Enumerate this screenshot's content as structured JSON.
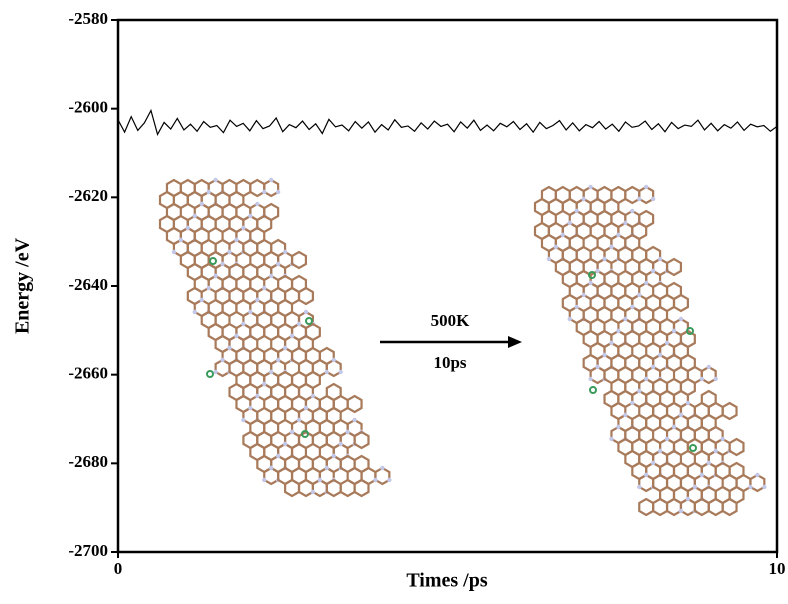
{
  "chart_data": {
    "type": "line",
    "ylabel": "Energy /eV",
    "xlabel": "Times /ps",
    "xlim": [
      0,
      10
    ],
    "xticks": [
      0,
      10
    ],
    "ylim": [
      -2700,
      -2580
    ],
    "yticks": [
      -2700,
      -2680,
      -2660,
      -2640,
      -2620,
      -2600,
      -2580
    ],
    "color": "#000000",
    "annotations": [
      "500K",
      "10ps"
    ],
    "x": [
      0,
      0.1,
      0.2,
      0.3,
      0.4,
      0.5,
      0.6,
      0.7,
      0.8,
      0.9,
      1,
      1.1,
      1.2,
      1.3,
      1.4,
      1.5,
      1.6,
      1.7,
      1.8,
      1.9,
      2,
      2.1,
      2.2,
      2.3,
      2.4,
      2.5,
      2.6,
      2.7,
      2.8,
      2.9,
      3,
      3.1,
      3.2,
      3.3,
      3.4,
      3.5,
      3.6,
      3.7,
      3.8,
      3.9,
      4,
      4.1,
      4.2,
      4.3,
      4.4,
      4.5,
      4.6,
      4.7,
      4.8,
      4.9,
      5,
      5.1,
      5.2,
      5.3,
      5.4,
      5.5,
      5.6,
      5.7,
      5.8,
      5.9,
      6,
      6.1,
      6.2,
      6.3,
      6.4,
      6.5,
      6.6,
      6.7,
      6.8,
      6.9,
      7,
      7.1,
      7.2,
      7.3,
      7.4,
      7.5,
      7.6,
      7.7,
      7.8,
      7.9,
      8,
      8.1,
      8.2,
      8.3,
      8.4,
      8.5,
      8.6,
      8.7,
      8.8,
      8.9,
      9,
      9.1,
      9.2,
      9.3,
      9.4,
      9.5,
      9.6,
      9.7,
      9.8,
      9.9,
      10
    ],
    "values": [
      -2602.5,
      -2605.3,
      -2601.8,
      -2604.9,
      -2603.2,
      -2600.4,
      -2605.8,
      -2603.1,
      -2604.6,
      -2602.2,
      -2604.8,
      -2603.5,
      -2605.1,
      -2602.9,
      -2604.2,
      -2603.8,
      -2605.4,
      -2602.6,
      -2604.0,
      -2603.3,
      -2605.0,
      -2602.7,
      -2604.5,
      -2603.9,
      -2602.1,
      -2605.2,
      -2603.6,
      -2604.3,
      -2602.8,
      -2604.7,
      -2603.4,
      -2605.6,
      -2602.4,
      -2604.1,
      -2603.7,
      -2605.0,
      -2602.9,
      -2604.4,
      -2603.0,
      -2605.3,
      -2603.6,
      -2604.8,
      -2602.5,
      -2604.2,
      -2603.9,
      -2605.1,
      -2603.2,
      -2604.6,
      -2602.8,
      -2604.0,
      -2603.5,
      -2605.2,
      -2603.0,
      -2604.4,
      -2602.6,
      -2604.9,
      -2603.7,
      -2605.0,
      -2603.3,
      -2604.1,
      -2602.9,
      -2604.7,
      -2603.4,
      -2605.3,
      -2603.1,
      -2604.5,
      -2603.8,
      -2602.7,
      -2604.8,
      -2603.2,
      -2605.0,
      -2603.6,
      -2604.3,
      -2602.9,
      -2604.6,
      -2603.5,
      -2605.1,
      -2603.0,
      -2604.2,
      -2603.9,
      -2602.8,
      -2604.7,
      -2603.4,
      -2605.2,
      -2603.1,
      -2604.5,
      -2603.7,
      -2604.0,
      -2602.6,
      -2604.8,
      -2603.3,
      -2605.0,
      -2603.6,
      -2604.4,
      -2603.0,
      -2604.9,
      -2603.5,
      -2604.1,
      -2603.8,
      -2605.1,
      -2604.0
    ]
  }
}
